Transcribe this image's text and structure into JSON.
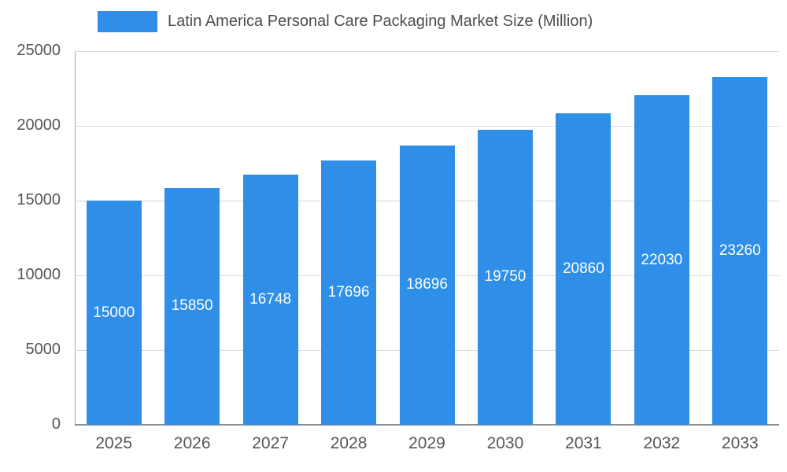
{
  "chart_data": {
    "type": "bar",
    "title": "Latin America Personal Care Packaging Market Size (Million)",
    "categories": [
      "2025",
      "2026",
      "2027",
      "2028",
      "2029",
      "2030",
      "2031",
      "2032",
      "2033"
    ],
    "values": [
      15000,
      15850,
      16748,
      17696,
      18696,
      19750,
      20860,
      22030,
      23260
    ],
    "xlabel": "",
    "ylabel": "",
    "ylim": [
      0,
      25000
    ],
    "yticks": [
      0,
      5000,
      10000,
      15000,
      20000,
      25000
    ],
    "grid": true,
    "legend_position": "top",
    "bar_color": "#2F8FE8",
    "value_label_color": "#ffffff",
    "axis_text_color": "#565656",
    "gridline_color": "#d9d9d9"
  }
}
